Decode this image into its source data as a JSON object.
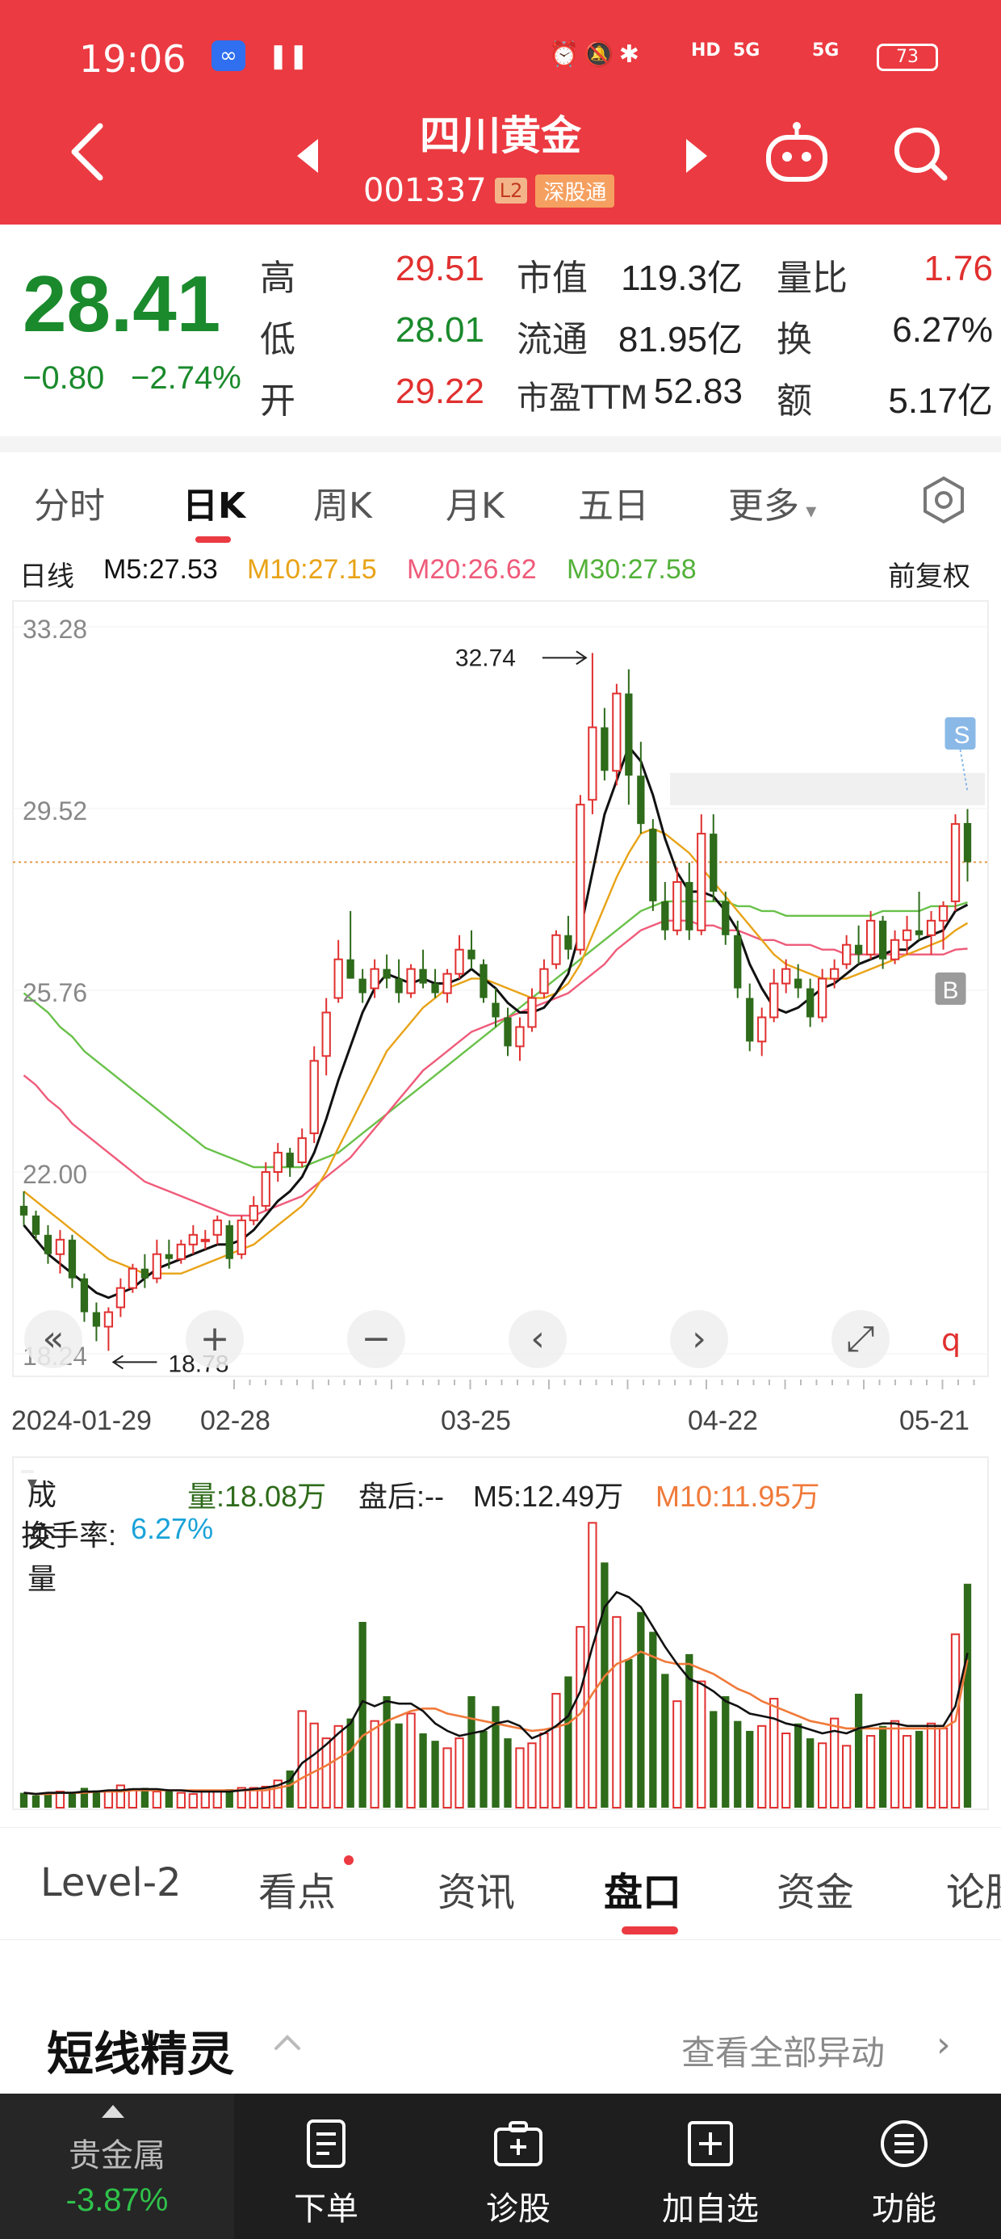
{
  "status_bar": {
    "time": "19:06",
    "network_1": "5G",
    "network_2": "5G",
    "hd": "HD",
    "battery": "73"
  },
  "header": {
    "stock_name": "四川黄金",
    "stock_code": "001337",
    "badge_level": "L2",
    "badge_connect": "深股通"
  },
  "quote": {
    "price": "28.41",
    "change": "−0.80",
    "change_pct": "−2.74%",
    "high_label": "高",
    "high": "29.51",
    "low_label": "低",
    "low": "28.01",
    "open_label": "开",
    "open": "29.22",
    "mcap_label": "市值",
    "mcap": "119.3亿",
    "float_label": "流通",
    "float": "81.95亿",
    "pe_label": "市盈TTM",
    "pe": "52.83",
    "vol_ratio_label": "量比",
    "vol_ratio": "1.76",
    "turnover_label": "换",
    "turnover": "6.27%",
    "amount_label": "额",
    "amount": "5.17亿"
  },
  "period_tabs": [
    "分时",
    "日K",
    "周K",
    "月K",
    "五日",
    "更多"
  ],
  "ma_legend": {
    "period": "日线",
    "m5": "M5:27.53",
    "m10": "M10:27.15",
    "m20": "M20:26.62",
    "m30": "M30:27.58",
    "adjust": "前复权"
  },
  "chart_data": [
    {
      "type": "candlestick",
      "title": "",
      "x_labels": [
        "2024-01-29",
        "02-28",
        "03-25",
        "04-22",
        "05-21"
      ],
      "y_ticks": [
        "33.28",
        "29.52",
        "25.76",
        "22.00",
        "18.24"
      ],
      "ylim": [
        18.24,
        33.28
      ],
      "annotations": {
        "high": "32.74",
        "low": "18.78",
        "sell_marker": "S",
        "buy_marker": "B"
      },
      "reference_line": 28.41,
      "colors": {
        "up": "#e0302f",
        "down": "#2e6b1a",
        "m5": "#111111",
        "m10": "#e8a317",
        "m20": "#ef5b7a",
        "m30": "#69c14a"
      },
      "ohlc": [
        [
          21.3,
          21.6,
          20.9,
          21.1
        ],
        [
          21.1,
          21.2,
          20.6,
          20.7
        ],
        [
          20.7,
          20.9,
          20.1,
          20.3
        ],
        [
          20.3,
          20.8,
          19.9,
          20.6
        ],
        [
          20.6,
          20.7,
          19.6,
          19.8
        ],
        [
          19.8,
          19.9,
          18.9,
          19.1
        ],
        [
          19.1,
          19.3,
          18.5,
          18.8
        ],
        [
          18.8,
          19.2,
          18.3,
          19.1
        ],
        [
          19.2,
          19.8,
          19.0,
          19.6
        ],
        [
          19.6,
          20.1,
          19.5,
          20.0
        ],
        [
          20.0,
          20.3,
          19.6,
          19.8
        ],
        [
          19.8,
          20.6,
          19.7,
          20.3
        ],
        [
          20.3,
          20.6,
          20.0,
          20.2
        ],
        [
          20.2,
          20.6,
          20.1,
          20.5
        ],
        [
          20.5,
          20.9,
          20.3,
          20.7
        ],
        [
          20.6,
          20.8,
          20.4,
          20.6
        ],
        [
          20.7,
          21.1,
          20.5,
          21.0
        ],
        [
          20.9,
          21.0,
          20.0,
          20.2
        ],
        [
          20.3,
          21.1,
          20.2,
          21.0
        ],
        [
          21.0,
          21.5,
          20.9,
          21.3
        ],
        [
          21.3,
          22.2,
          21.2,
          22.0
        ],
        [
          22.0,
          22.6,
          21.8,
          22.4
        ],
        [
          22.4,
          22.5,
          21.9,
          22.1
        ],
        [
          22.2,
          22.9,
          22.1,
          22.7
        ],
        [
          22.8,
          24.6,
          22.6,
          24.3
        ],
        [
          24.4,
          25.6,
          24.0,
          25.3
        ],
        [
          25.6,
          26.8,
          25.5,
          26.4
        ],
        [
          26.4,
          27.4,
          26.0,
          26.0
        ],
        [
          26.0,
          26.2,
          25.5,
          25.7
        ],
        [
          25.8,
          26.4,
          25.6,
          26.2
        ],
        [
          26.2,
          26.5,
          25.8,
          26.0
        ],
        [
          26.0,
          26.4,
          25.5,
          25.7
        ],
        [
          25.7,
          26.3,
          25.6,
          26.2
        ],
        [
          26.2,
          26.6,
          25.8,
          25.9
        ],
        [
          25.9,
          26.2,
          25.6,
          25.7
        ],
        [
          25.7,
          26.2,
          25.5,
          26.1
        ],
        [
          26.1,
          26.9,
          26.0,
          26.6
        ],
        [
          26.6,
          27.0,
          26.2,
          26.4
        ],
        [
          26.3,
          26.4,
          25.5,
          25.6
        ],
        [
          25.5,
          25.8,
          25.0,
          25.2
        ],
        [
          25.2,
          25.4,
          24.4,
          24.6
        ],
        [
          24.6,
          25.2,
          24.3,
          25.0
        ],
        [
          25.0,
          25.8,
          24.9,
          25.6
        ],
        [
          25.7,
          26.4,
          25.6,
          26.2
        ],
        [
          26.3,
          27.0,
          26.2,
          26.9
        ],
        [
          26.9,
          27.3,
          26.4,
          26.6
        ],
        [
          26.6,
          29.8,
          26.5,
          29.6
        ],
        [
          29.7,
          32.74,
          29.4,
          31.2
        ],
        [
          31.2,
          31.6,
          30.1,
          30.3
        ],
        [
          30.3,
          32.1,
          30.0,
          31.9
        ],
        [
          31.9,
          32.4,
          29.6,
          30.2
        ],
        [
          30.2,
          30.9,
          29.0,
          29.2
        ],
        [
          29.1,
          29.3,
          27.4,
          27.6
        ],
        [
          27.6,
          28.0,
          26.8,
          27.0
        ],
        [
          27.0,
          28.3,
          26.9,
          28.0
        ],
        [
          28.0,
          28.4,
          26.8,
          27.0
        ],
        [
          27.0,
          29.4,
          26.9,
          29.0
        ],
        [
          29.0,
          29.4,
          27.6,
          27.8
        ],
        [
          27.6,
          27.8,
          26.7,
          26.9
        ],
        [
          26.9,
          27.2,
          25.6,
          25.8
        ],
        [
          25.6,
          25.9,
          24.5,
          24.7
        ],
        [
          24.7,
          25.4,
          24.4,
          25.2
        ],
        [
          25.2,
          26.2,
          25.1,
          25.9
        ],
        [
          25.9,
          26.4,
          25.7,
          26.2
        ],
        [
          26.0,
          26.3,
          25.6,
          25.8
        ],
        [
          25.8,
          26.0,
          25.0,
          25.2
        ],
        [
          25.2,
          26.2,
          25.1,
          26.0
        ],
        [
          26.0,
          26.4,
          25.8,
          26.2
        ],
        [
          26.3,
          26.9,
          26.2,
          26.7
        ],
        [
          26.7,
          27.1,
          26.3,
          26.5
        ],
        [
          26.5,
          27.4,
          26.4,
          27.2
        ],
        [
          27.2,
          27.3,
          26.2,
          26.4
        ],
        [
          26.4,
          27.0,
          26.3,
          26.8
        ],
        [
          26.8,
          27.3,
          26.5,
          27.0
        ],
        [
          27.0,
          27.8,
          26.8,
          26.9
        ],
        [
          26.9,
          27.4,
          26.5,
          27.2
        ],
        [
          27.2,
          27.6,
          26.6,
          27.5
        ],
        [
          27.6,
          29.4,
          27.4,
          29.2
        ],
        [
          29.22,
          29.51,
          28.01,
          28.41
        ]
      ],
      "ma": {
        "m5": [
          20.9,
          20.6,
          20.3,
          20.1,
          19.9,
          19.7,
          19.5,
          19.4,
          19.5,
          19.6,
          19.8,
          20.0,
          20.1,
          20.2,
          20.3,
          20.4,
          20.5,
          20.5,
          20.6,
          20.8,
          21.1,
          21.4,
          21.6,
          21.9,
          22.4,
          23.1,
          23.9,
          24.6,
          25.3,
          25.8,
          26.1,
          26.0,
          25.9,
          26.0,
          25.9,
          25.9,
          26.0,
          26.2,
          26.0,
          25.8,
          25.5,
          25.3,
          25.3,
          25.4,
          25.7,
          26.1,
          27.0,
          28.2,
          29.4,
          30.1,
          30.8,
          30.5,
          29.8,
          28.9,
          28.2,
          27.8,
          27.8,
          27.7,
          27.4,
          27.0,
          26.3,
          25.8,
          25.4,
          25.3,
          25.4,
          25.6,
          25.8,
          25.9,
          26.1,
          26.3,
          26.4,
          26.5,
          26.6,
          26.6,
          26.8,
          26.9,
          27.0,
          27.4,
          27.53
        ],
        "m10": [
          21.6,
          21.4,
          21.2,
          21.0,
          20.8,
          20.6,
          20.4,
          20.2,
          20.1,
          20.0,
          19.9,
          19.9,
          19.9,
          19.9,
          20.0,
          20.1,
          20.2,
          20.3,
          20.4,
          20.5,
          20.7,
          20.9,
          21.1,
          21.3,
          21.6,
          22.0,
          22.5,
          23.0,
          23.5,
          24.0,
          24.5,
          24.8,
          25.1,
          25.4,
          25.6,
          25.8,
          25.9,
          26.0,
          26.0,
          25.9,
          25.8,
          25.7,
          25.6,
          25.6,
          25.7,
          25.9,
          26.3,
          26.9,
          27.5,
          28.1,
          28.6,
          29.0,
          29.1,
          29.0,
          28.8,
          28.6,
          28.3,
          28.0,
          27.7,
          27.4,
          27.1,
          26.8,
          26.5,
          26.3,
          26.2,
          26.1,
          26.0,
          26.0,
          26.0,
          26.1,
          26.2,
          26.3,
          26.4,
          26.5,
          26.6,
          26.7,
          26.8,
          27.0,
          27.15
        ],
        "m20": [
          24.0,
          23.8,
          23.5,
          23.3,
          23.0,
          22.8,
          22.6,
          22.4,
          22.2,
          22.0,
          21.8,
          21.7,
          21.6,
          21.5,
          21.4,
          21.3,
          21.2,
          21.1,
          21.1,
          21.1,
          21.2,
          21.3,
          21.4,
          21.5,
          21.7,
          21.9,
          22.1,
          22.3,
          22.6,
          22.9,
          23.2,
          23.5,
          23.8,
          24.1,
          24.3,
          24.5,
          24.7,
          24.9,
          25.0,
          25.1,
          25.2,
          25.3,
          25.4,
          25.5,
          25.6,
          25.7,
          25.9,
          26.1,
          26.3,
          26.6,
          26.8,
          27.0,
          27.1,
          27.2,
          27.2,
          27.2,
          27.1,
          27.1,
          27.0,
          27.0,
          26.9,
          26.8,
          26.8,
          26.7,
          26.7,
          26.7,
          26.6,
          26.6,
          26.5,
          26.5,
          26.5,
          26.5,
          26.5,
          26.5,
          26.5,
          26.5,
          26.5,
          26.6,
          26.62
        ],
        "m30": [
          25.7,
          25.5,
          25.3,
          25.0,
          24.8,
          24.5,
          24.3,
          24.1,
          23.9,
          23.7,
          23.5,
          23.3,
          23.1,
          22.9,
          22.7,
          22.5,
          22.4,
          22.3,
          22.2,
          22.1,
          22.1,
          22.1,
          22.1,
          22.1,
          22.2,
          22.3,
          22.4,
          22.6,
          22.8,
          23.0,
          23.2,
          23.4,
          23.6,
          23.8,
          24.0,
          24.2,
          24.4,
          24.6,
          24.8,
          25.0,
          25.2,
          25.4,
          25.6,
          25.8,
          26.0,
          26.2,
          26.4,
          26.6,
          26.8,
          27.0,
          27.2,
          27.4,
          27.5,
          27.6,
          27.6,
          27.6,
          27.6,
          27.6,
          27.6,
          27.5,
          27.5,
          27.4,
          27.4,
          27.3,
          27.3,
          27.3,
          27.3,
          27.3,
          27.3,
          27.3,
          27.3,
          27.4,
          27.4,
          27.4,
          27.4,
          27.5,
          27.5,
          27.5,
          27.58
        ]
      }
    },
    {
      "type": "bar",
      "title": "",
      "legend": {
        "indicator": "成交量",
        "vol": "量:18.08万",
        "after_hours": "盘后:--",
        "m5": "M5:12.49万",
        "m10": "M10:11.95万",
        "turnover_label": "换手率:",
        "turnover": "6.27%"
      },
      "values": [
        1.2,
        1.0,
        1.1,
        1.3,
        1.2,
        1.6,
        1.4,
        1.3,
        1.8,
        1.5,
        1.6,
        1.3,
        1.4,
        1.2,
        1.1,
        1.3,
        1.4,
        1.5,
        1.6,
        1.6,
        1.7,
        2.2,
        3.0,
        7.8,
        6.8,
        5.6,
        6.6,
        7.2,
        15.0,
        7.0,
        9.0,
        6.8,
        7.6,
        6.0,
        5.4,
        4.8,
        5.6,
        9.0,
        6.2,
        8.2,
        5.6,
        4.8,
        5.2,
        6.0,
        9.2,
        10.6,
        14.6,
        23.0,
        19.8,
        15.4,
        12.0,
        15.8,
        14.2,
        10.8,
        8.6,
        12.4,
        10.2,
        7.8,
        9.0,
        7.0,
        6.2,
        6.6,
        8.8,
        6.0,
        6.8,
        5.6,
        5.2,
        7.2,
        5.0,
        9.2,
        5.8,
        6.6,
        7.0,
        5.8,
        6.2,
        6.8,
        6.4,
        14.0,
        18.08
      ],
      "m5": [
        1.2,
        1.1,
        1.2,
        1.2,
        1.2,
        1.3,
        1.3,
        1.4,
        1.4,
        1.5,
        1.5,
        1.5,
        1.4,
        1.4,
        1.3,
        1.3,
        1.3,
        1.3,
        1.4,
        1.5,
        1.6,
        1.8,
        2.2,
        3.6,
        4.3,
        5.1,
        6.0,
        6.8,
        8.6,
        8.2,
        8.6,
        8.4,
        8.4,
        7.8,
        6.8,
        6.2,
        5.8,
        6.0,
        6.2,
        6.8,
        7.0,
        6.6,
        5.6,
        6.0,
        6.6,
        7.4,
        9.4,
        13.0,
        16.2,
        17.4,
        17.0,
        16.2,
        14.6,
        13.0,
        11.6,
        10.4,
        10.0,
        9.4,
        8.6,
        8.2,
        7.6,
        7.4,
        7.2,
        6.8,
        6.6,
        6.3,
        6.0,
        6.2,
        6.0,
        6.4,
        6.6,
        6.8,
        6.8,
        6.6,
        6.6,
        6.6,
        6.6,
        8.2,
        12.49
      ],
      "m10": [
        1.2,
        1.1,
        1.1,
        1.2,
        1.2,
        1.2,
        1.3,
        1.3,
        1.3,
        1.4,
        1.4,
        1.4,
        1.4,
        1.4,
        1.4,
        1.4,
        1.4,
        1.4,
        1.4,
        1.4,
        1.4,
        1.6,
        1.8,
        2.4,
        2.9,
        3.4,
        4.0,
        4.6,
        5.8,
        6.4,
        7.0,
        7.4,
        7.8,
        8.0,
        8.0,
        7.6,
        7.4,
        7.2,
        7.0,
        6.8,
        6.6,
        6.4,
        6.2,
        6.3,
        6.5,
        6.8,
        7.6,
        9.2,
        10.6,
        11.6,
        12.0,
        12.6,
        12.2,
        11.8,
        11.6,
        11.6,
        11.2,
        10.8,
        10.2,
        9.6,
        9.2,
        8.6,
        8.2,
        7.8,
        7.4,
        7.0,
        6.8,
        6.6,
        6.4,
        6.4,
        6.4,
        6.4,
        6.4,
        6.4,
        6.4,
        6.4,
        6.4,
        7.0,
        11.95
      ]
    }
  ],
  "info_tabs": [
    "Level-2",
    "看点",
    "资讯",
    "盘口",
    "资金",
    "论股"
  ],
  "section": {
    "title": "短线精灵",
    "link": "查看全部异动"
  },
  "bottom_nav": {
    "sector_name": "贵金属",
    "sector_pct": "-3.87%",
    "items": [
      "下单",
      "诊股",
      "加自选",
      "功能"
    ]
  }
}
